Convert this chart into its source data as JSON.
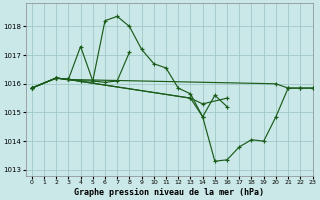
{
  "title": "Graphe pression niveau de la mer (hPa)",
  "bg_color": "#cbe8e8",
  "grid_color": "#a0c8c8",
  "line_color": "#1a5c1a",
  "xlim": [
    -0.5,
    23
  ],
  "ylim": [
    1012.8,
    1018.8
  ],
  "yticks": [
    1013,
    1014,
    1015,
    1016,
    1017,
    1018
  ],
  "xticks": [
    0,
    1,
    2,
    3,
    4,
    5,
    6,
    7,
    8,
    9,
    10,
    11,
    12,
    13,
    14,
    15,
    16,
    17,
    18,
    19,
    20,
    21,
    22,
    23
  ],
  "series": [
    {
      "x": [
        0,
        2,
        3,
        4,
        5,
        6,
        7,
        8,
        9,
        10,
        11,
        12,
        13,
        14,
        15,
        16
      ],
      "y": [
        1015.85,
        1016.2,
        1016.15,
        1016.1,
        1016.1,
        1018.2,
        1018.35,
        1018.0,
        1017.2,
        1016.7,
        1016.55,
        1015.85,
        1015.65,
        1014.85,
        1015.6,
        1015.2
      ]
    },
    {
      "x": [
        0,
        2,
        3,
        4,
        5,
        6,
        7,
        8
      ],
      "y": [
        1015.85,
        1016.2,
        1016.15,
        1017.3,
        1016.1,
        1016.05,
        1016.1,
        1017.1
      ]
    },
    {
      "x": [
        0,
        2,
        3,
        20,
        21,
        22,
        23
      ],
      "y": [
        1015.85,
        1016.2,
        1016.15,
        1016.0,
        1015.85,
        1015.85,
        1015.85
      ]
    },
    {
      "x": [
        0,
        2,
        3,
        13,
        14,
        15,
        16,
        17,
        18,
        19,
        20,
        21,
        22,
        23
      ],
      "y": [
        1015.85,
        1016.2,
        1016.15,
        1015.5,
        1014.85,
        1013.3,
        1013.35,
        1013.8,
        1014.05,
        1014.0,
        1014.85,
        1015.85,
        1015.85,
        1015.85
      ]
    },
    {
      "x": [
        0,
        2,
        3,
        13,
        14,
        16
      ],
      "y": [
        1015.85,
        1016.2,
        1016.15,
        1015.5,
        1015.3,
        1015.5
      ]
    }
  ]
}
